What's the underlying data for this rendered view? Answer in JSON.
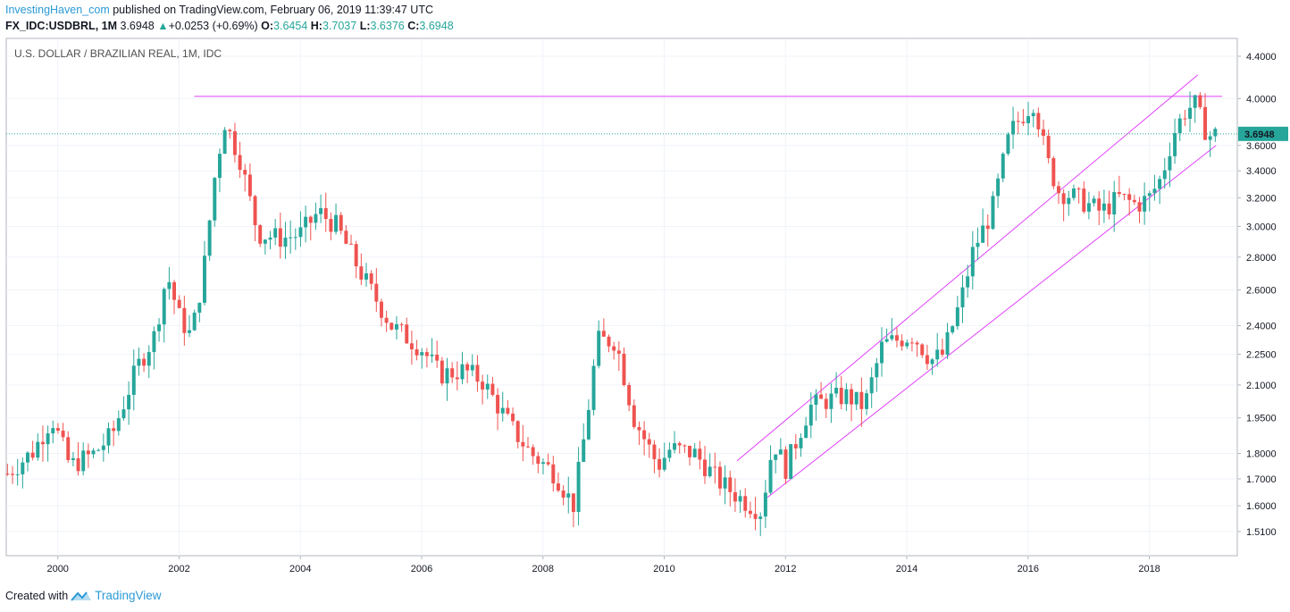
{
  "header": {
    "author": "InvestingHaven_com",
    "published": "published on TradingView.com, February 06, 2019 11:39:47 UTC",
    "symbol": "FX_IDC:USDBRL, 1M",
    "last": "3.6948",
    "change_arrow": "▲",
    "change": "+0.0253 (+0.69%)",
    "o_label": "O:",
    "o_value": "3.6454",
    "h_label": "H:",
    "h_value": "3.7037",
    "l_label": "L:",
    "l_value": "3.6376",
    "c_label": "C:",
    "c_value": "3.6948"
  },
  "footer": {
    "created_with": "Created with",
    "brand": "TradingView"
  },
  "colors": {
    "up": "#26a69a",
    "down": "#ef5350",
    "trendline": "#e040fb",
    "brand": "#2b9ad6",
    "grid": "#f0f3fa"
  },
  "chart_data": {
    "type": "candlestick",
    "title": "U.S. DOLLAR / BRAZILIAN REAL, 1M, IDC",
    "interval": "1M",
    "scale": "log",
    "last_price_label": "3.6948",
    "y_ticks": [
      1.51,
      1.6,
      1.7,
      1.8,
      1.95,
      2.1,
      2.25,
      2.4,
      2.6,
      2.8,
      3.0,
      3.2,
      3.4,
      3.6,
      4.0,
      4.4
    ],
    "y_tick_labels": [
      "1.5100",
      "1.6000",
      "1.7000",
      "1.8000",
      "1.9500",
      "2.1000",
      "2.2500",
      "2.4000",
      "2.6000",
      "2.8000",
      "3.0000",
      "3.2000",
      "3.4000",
      "3.6000",
      "4.0000",
      "4.4000"
    ],
    "x_ticks": [
      2000,
      2002,
      2004,
      2006,
      2008,
      2010,
      2012,
      2014,
      2016,
      2018
    ],
    "x_tick_labels": [
      "2000",
      "2002",
      "2004",
      "2006",
      "2008",
      "2010",
      "2012",
      "2014",
      "2016",
      "2018"
    ],
    "x_range": [
      1999.15,
      2019.45
    ],
    "y_range": [
      1.43,
      4.58
    ],
    "anchors": [
      [
        1999.17,
        1.72
      ],
      [
        1999.6,
        1.81
      ],
      [
        1999.9,
        1.95
      ],
      [
        2000.2,
        1.75
      ],
      [
        2000.6,
        1.8
      ],
      [
        2000.9,
        1.88
      ],
      [
        2001.3,
        2.18
      ],
      [
        2001.6,
        2.35
      ],
      [
        2001.8,
        2.7
      ],
      [
        2002.0,
        2.45
      ],
      [
        2002.2,
        2.34
      ],
      [
        2002.4,
        2.7
      ],
      [
        2002.6,
        3.4
      ],
      [
        2002.75,
        3.8
      ],
      [
        2003.0,
        3.5
      ],
      [
        2003.3,
        2.95
      ],
      [
        2003.7,
        2.92
      ],
      [
        2004.0,
        2.95
      ],
      [
        2004.3,
        3.1
      ],
      [
        2004.6,
        3.0
      ],
      [
        2005.0,
        2.7
      ],
      [
        2005.5,
        2.4
      ],
      [
        2006.0,
        2.28
      ],
      [
        2006.3,
        2.15
      ],
      [
        2006.7,
        2.17
      ],
      [
        2007.0,
        2.12
      ],
      [
        2007.5,
        1.9
      ],
      [
        2007.8,
        1.8
      ],
      [
        2008.2,
        1.72
      ],
      [
        2008.5,
        1.6
      ],
      [
        2008.7,
        1.9
      ],
      [
        2008.9,
        2.32
      ],
      [
        2009.2,
        2.32
      ],
      [
        2009.5,
        1.95
      ],
      [
        2009.9,
        1.75
      ],
      [
        2010.1,
        1.82
      ],
      [
        2010.5,
        1.8
      ],
      [
        2010.9,
        1.69
      ],
      [
        2011.3,
        1.62
      ],
      [
        2011.6,
        1.58
      ],
      [
        2011.8,
        1.85
      ],
      [
        2012.0,
        1.74
      ],
      [
        2012.4,
        2.0
      ],
      [
        2012.7,
        2.03
      ],
      [
        2013.0,
        2.05
      ],
      [
        2013.3,
        2.0
      ],
      [
        2013.6,
        2.3
      ],
      [
        2013.9,
        2.33
      ],
      [
        2014.1,
        2.35
      ],
      [
        2014.4,
        2.22
      ],
      [
        2014.6,
        2.25
      ],
      [
        2014.9,
        2.55
      ],
      [
        2015.1,
        2.85
      ],
      [
        2015.4,
        3.1
      ],
      [
        2015.7,
        3.7
      ],
      [
        2015.9,
        3.85
      ],
      [
        2016.1,
        3.98
      ],
      [
        2016.3,
        3.5
      ],
      [
        2016.5,
        3.25
      ],
      [
        2016.8,
        3.2
      ],
      [
        2017.0,
        3.15
      ],
      [
        2017.2,
        3.1
      ],
      [
        2017.5,
        3.2
      ],
      [
        2017.8,
        3.15
      ],
      [
        2018.0,
        3.2
      ],
      [
        2018.2,
        3.35
      ],
      [
        2018.4,
        3.7
      ],
      [
        2018.6,
        3.9
      ],
      [
        2018.75,
        3.95
      ],
      [
        2018.9,
        3.75
      ],
      [
        2019.0,
        3.68
      ],
      [
        2019.08,
        3.69
      ]
    ],
    "resistance_line": {
      "start": [
        2002.25,
        4.02
      ],
      "end": [
        2019.2,
        4.02
      ]
    },
    "channel_upper": {
      "start": [
        2011.2,
        1.77
      ],
      "end": [
        2018.8,
        4.22
      ]
    },
    "channel_lower": {
      "start": [
        2011.7,
        1.63
      ],
      "end": [
        2019.1,
        3.6
      ]
    },
    "last_price_line": 3.6948
  }
}
